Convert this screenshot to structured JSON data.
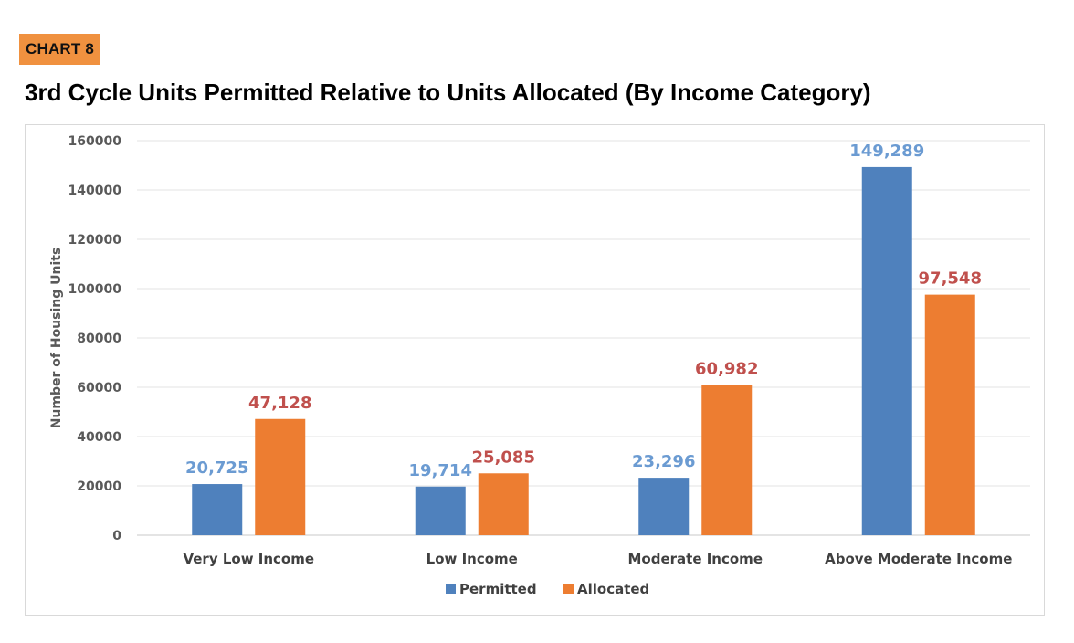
{
  "header": {
    "badge": "CHART 8",
    "title": "3rd Cycle Units Permitted Relative to Units Allocated (By Income Category)"
  },
  "chart_data": {
    "type": "bar",
    "title": "3rd Cycle Units Permitted Relative to Units Allocated (By Income Category)",
    "xlabel": "",
    "ylabel": "Number of Housing Units",
    "ylim": [
      0,
      160000
    ],
    "yticks": [
      "0",
      "20000",
      "40000",
      "60000",
      "80000",
      "100000",
      "120000",
      "140000",
      "160000"
    ],
    "categories": [
      "Very Low Income",
      "Low Income",
      "Moderate Income",
      "Above Moderate Income"
    ],
    "series": [
      {
        "name": "Permitted",
        "color": "#4f81bd",
        "label_color": "#6b9bd2",
        "values": [
          20725,
          19714,
          23296,
          149289
        ],
        "labels": [
          "20,725",
          "19,714",
          "23,296",
          "149,289"
        ]
      },
      {
        "name": "Allocated",
        "color": "#ed7d31",
        "label_color": "#c0504d",
        "values": [
          47128,
          25085,
          60982,
          97548
        ],
        "labels": [
          "47,128",
          "25,085",
          "60,982",
          "97,548"
        ]
      }
    ],
    "grid": true,
    "legend_position": "bottom"
  }
}
